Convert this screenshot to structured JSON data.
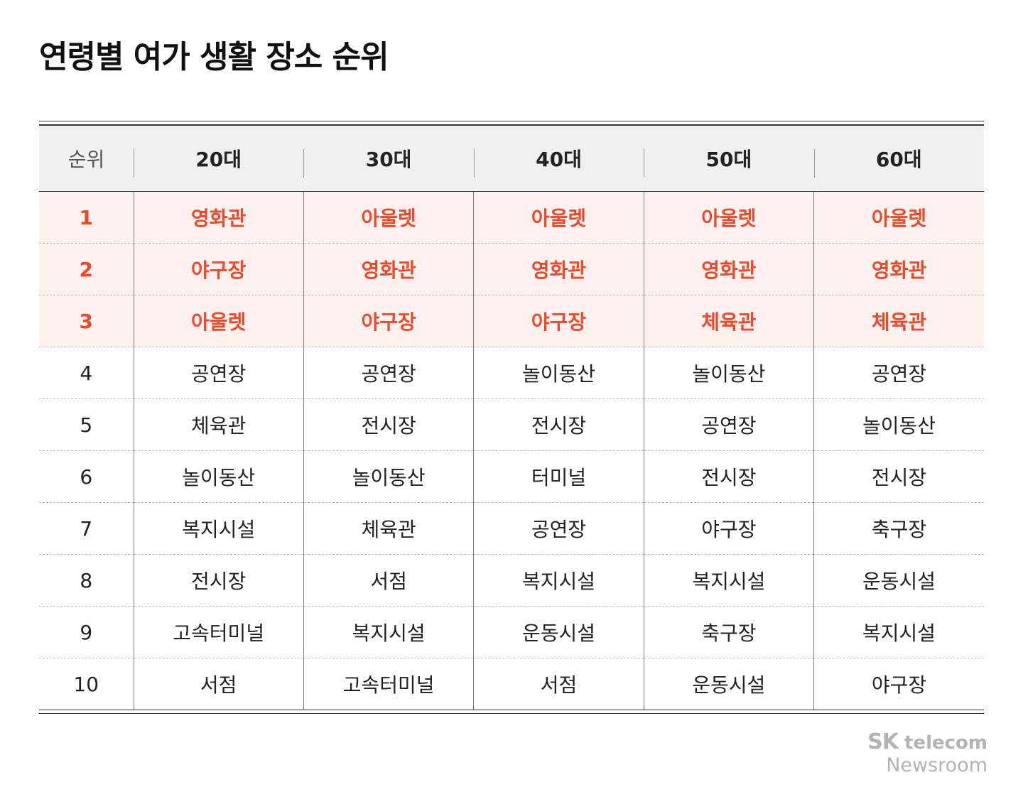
{
  "title": "연령별 여가 생활 장소 순위",
  "chart_data": {
    "type": "table",
    "title": "연령별 여가 생활 장소 순위",
    "columns": [
      "순위",
      "20대",
      "30대",
      "40대",
      "50대",
      "60대"
    ],
    "rows": [
      [
        "1",
        "영화관",
        "아울렛",
        "아울렛",
        "아울렛",
        "아울렛"
      ],
      [
        "2",
        "야구장",
        "영화관",
        "영화관",
        "영화관",
        "영화관"
      ],
      [
        "3",
        "아울렛",
        "야구장",
        "야구장",
        "체육관",
        "체육관"
      ],
      [
        "4",
        "공연장",
        "공연장",
        "놀이동산",
        "놀이동산",
        "공연장"
      ],
      [
        "5",
        "체육관",
        "전시장",
        "전시장",
        "공연장",
        "놀이동산"
      ],
      [
        "6",
        "놀이동산",
        "놀이동산",
        "터미널",
        "전시장",
        "전시장"
      ],
      [
        "7",
        "복지시설",
        "체육관",
        "공연장",
        "야구장",
        "축구장"
      ],
      [
        "8",
        "전시장",
        "서점",
        "복지시설",
        "복지시설",
        "운동시설"
      ],
      [
        "9",
        "고속터미널",
        "복지시설",
        "운동시설",
        "축구장",
        "복지시설"
      ],
      [
        "10",
        "서점",
        "고속터미널",
        "서점",
        "운동시설",
        "야구장"
      ]
    ],
    "highlight_top_n": 3,
    "highlight_color": "#e84b2c",
    "highlight_bg": "#fdf1ef",
    "header_bg": "#f0f0f0"
  },
  "logo": {
    "brand_sk": "SK",
    "brand_rest": "telecom",
    "sub": "Newsroom"
  }
}
